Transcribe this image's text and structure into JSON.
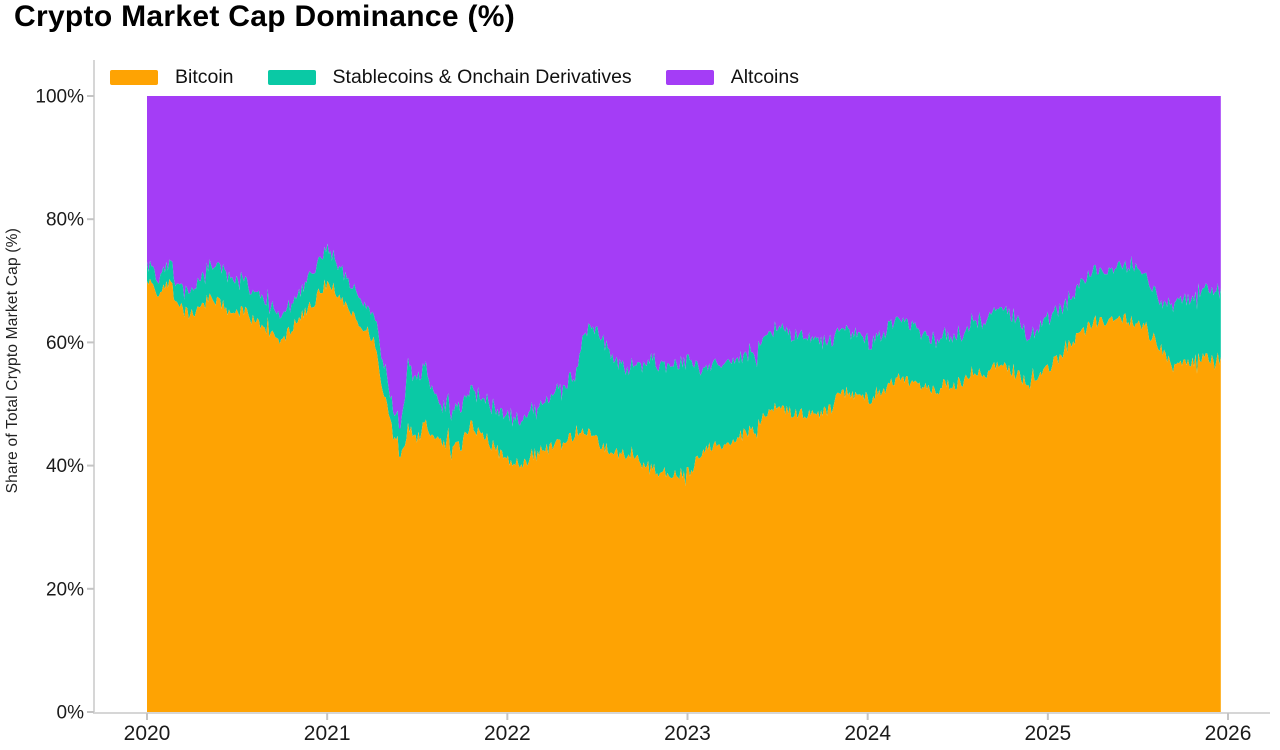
{
  "header": {
    "title": "Crypto Market Cap Dominance (%)"
  },
  "axis_style": {
    "axis_line_color": "#d6d6d6",
    "tick_mark_color": "#c4c4c4",
    "tick_label_color": "#1b1b1b"
  },
  "chart_data": {
    "type": "area",
    "stacked": true,
    "title": "Crypto Market Cap Dominance (%)",
    "xlabel": "",
    "ylabel": "Share of Total Crypto Market Cap (%)",
    "x_range": [
      2020,
      2026
    ],
    "ylim": [
      0,
      100
    ],
    "grid": false,
    "legend_position": "top",
    "x_tick_years": [
      2020,
      2021,
      2022,
      2023,
      2024,
      2025,
      2026
    ],
    "x_tick_labels": [
      "2020",
      "2021",
      "2022",
      "2023",
      "2024",
      "2025",
      "2026"
    ],
    "y_tick_values": [
      0,
      20,
      40,
      60,
      80,
      100
    ],
    "y_tick_labels": [
      "0%",
      "20%",
      "40%",
      "60%",
      "80%",
      "100%"
    ],
    "x": [
      2020.0,
      2020.07,
      2020.13,
      2020.18,
      2020.24,
      2020.29,
      2020.35,
      2020.41,
      2020.46,
      2020.52,
      2020.57,
      2020.63,
      2020.68,
      2020.74,
      2020.79,
      2020.85,
      2020.91,
      2020.96,
      2021.0,
      2021.06,
      2021.11,
      2021.17,
      2021.22,
      2021.26,
      2021.29,
      2021.33,
      2021.37,
      2021.41,
      2021.45,
      2021.5,
      2021.54,
      2021.63,
      2021.74,
      2021.79,
      2021.88,
      2021.96,
      2022.07,
      2022.18,
      2022.3,
      2022.38,
      2022.43,
      2022.52,
      2022.6,
      2022.68,
      2022.79,
      2022.88,
      2022.96,
      2023.02,
      2023.07,
      2023.21,
      2023.35,
      2023.49,
      2023.63,
      2023.79,
      2023.85,
      2024.02,
      2024.18,
      2024.35,
      2024.52,
      2024.68,
      2024.74,
      2024.82,
      2024.91,
      2024.99,
      2025.11,
      2025.25,
      2025.35,
      2025.48,
      2025.55,
      2025.63,
      2025.7,
      2025.78,
      2025.85,
      2025.94,
      2025.96
    ],
    "series": [
      {
        "name": "Bitcoin",
        "color": "#FEA303",
        "values": [
          70.5,
          68.0,
          69.5,
          65.6,
          64.3,
          65.6,
          67.3,
          66.5,
          64.6,
          65.1,
          64.3,
          62.4,
          61.4,
          60.3,
          61.9,
          64.0,
          66.0,
          68.1,
          70.0,
          67.9,
          65.1,
          63.5,
          61.9,
          60.3,
          55.4,
          49.3,
          44.5,
          42.0,
          46.0,
          44.0,
          46.9,
          44.0,
          42.8,
          46.7,
          44.5,
          41.8,
          39.9,
          42.5,
          43.4,
          45.5,
          46.0,
          43.4,
          42.0,
          41.5,
          39.6,
          38.5,
          38.8,
          39.1,
          42.3,
          44.0,
          45.6,
          49.3,
          48.4,
          48.9,
          52.1,
          51.0,
          54.2,
          52.1,
          53.7,
          55.4,
          56.5,
          55.0,
          53.2,
          55.4,
          59.2,
          63.2,
          64.0,
          63.5,
          61.9,
          59.2,
          55.9,
          57.0,
          57.3,
          57.5,
          57.0
        ]
      },
      {
        "name": "Stablecoins & Onchain Derivatives",
        "color": "#0AC9A5",
        "values": [
          2.5,
          2.6,
          2.8,
          3.2,
          3.6,
          4.2,
          5.0,
          6.2,
          5.5,
          5.0,
          4.6,
          4.4,
          4.2,
          4.0,
          4.2,
          4.5,
          5.0,
          5.3,
          5.6,
          4.8,
          4.4,
          4.2,
          4.0,
          4.2,
          4.6,
          4.8,
          3.8,
          4.5,
          11.0,
          9.5,
          9.6,
          6.0,
          6.1,
          5.9,
          6.0,
          6.5,
          7.3,
          7.5,
          8.6,
          9.5,
          16.7,
          17.4,
          15.0,
          14.1,
          17.4,
          17.5,
          18.2,
          18.4,
          13.6,
          13.3,
          12.2,
          12.6,
          13.0,
          10.9,
          10.6,
          9.3,
          9.6,
          8.2,
          7.7,
          8.9,
          8.9,
          9.0,
          7.3,
          8.1,
          7.3,
          8.5,
          8.0,
          9.3,
          8.1,
          7.6,
          10.4,
          10.3,
          10.8,
          11.2,
          11.5
        ]
      },
      {
        "name": "Altcoins",
        "color": "#A43DF6",
        "values": [
          27.0,
          29.4,
          27.7,
          31.2,
          32.1,
          30.2,
          27.7,
          27.3,
          29.9,
          29.9,
          31.1,
          33.2,
          34.4,
          35.7,
          33.9,
          31.5,
          29.0,
          26.6,
          24.4,
          27.3,
          30.5,
          32.3,
          34.1,
          35.5,
          40.0,
          45.9,
          51.7,
          53.5,
          43.0,
          46.5,
          43.5,
          50.0,
          51.1,
          47.4,
          49.5,
          51.7,
          52.8,
          50.0,
          48.0,
          45.0,
          37.3,
          39.2,
          43.0,
          44.4,
          43.0,
          44.0,
          43.0,
          42.5,
          44.1,
          42.7,
          42.2,
          38.1,
          38.6,
          40.2,
          37.3,
          39.7,
          36.2,
          39.7,
          38.6,
          35.7,
          34.6,
          36.0,
          39.5,
          36.5,
          33.5,
          28.3,
          28.0,
          27.2,
          30.0,
          33.2,
          33.7,
          32.7,
          31.9,
          31.3,
          31.5
        ]
      }
    ]
  }
}
